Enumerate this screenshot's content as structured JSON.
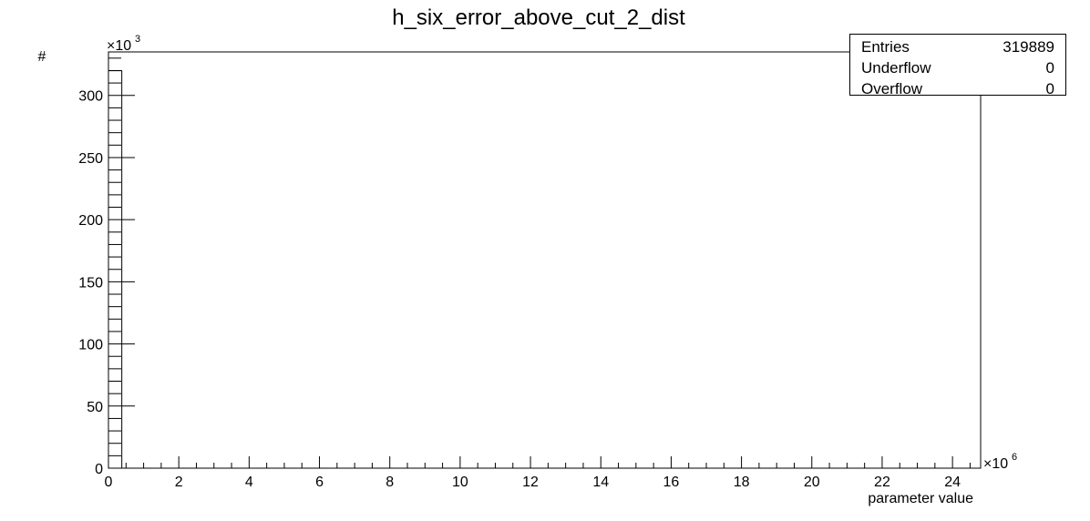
{
  "chart_data": {
    "type": "bar",
    "title": "h_six_error_above_cut_2_dist",
    "xlabel": "parameter value",
    "ylabel": "#",
    "x_multiplier": "×10",
    "x_multiplier_exp": "6",
    "y_multiplier": "×10",
    "y_multiplier_exp": "3",
    "xlim": [
      0,
      24.8
    ],
    "ylim": [
      0,
      335
    ],
    "x_ticks": [
      0,
      2,
      4,
      6,
      8,
      10,
      12,
      14,
      16,
      18,
      20,
      22,
      24
    ],
    "y_ticks": [
      0,
      50,
      100,
      150,
      200,
      250,
      300
    ],
    "bins": [
      {
        "x_start": 0,
        "x_end": 0.38,
        "value": 319.889
      }
    ],
    "grid": false,
    "stats": [
      {
        "label": "Entries",
        "value": "319889"
      },
      {
        "label": "Underflow",
        "value": "0"
      },
      {
        "label": "Overflow",
        "value": "0"
      }
    ]
  }
}
